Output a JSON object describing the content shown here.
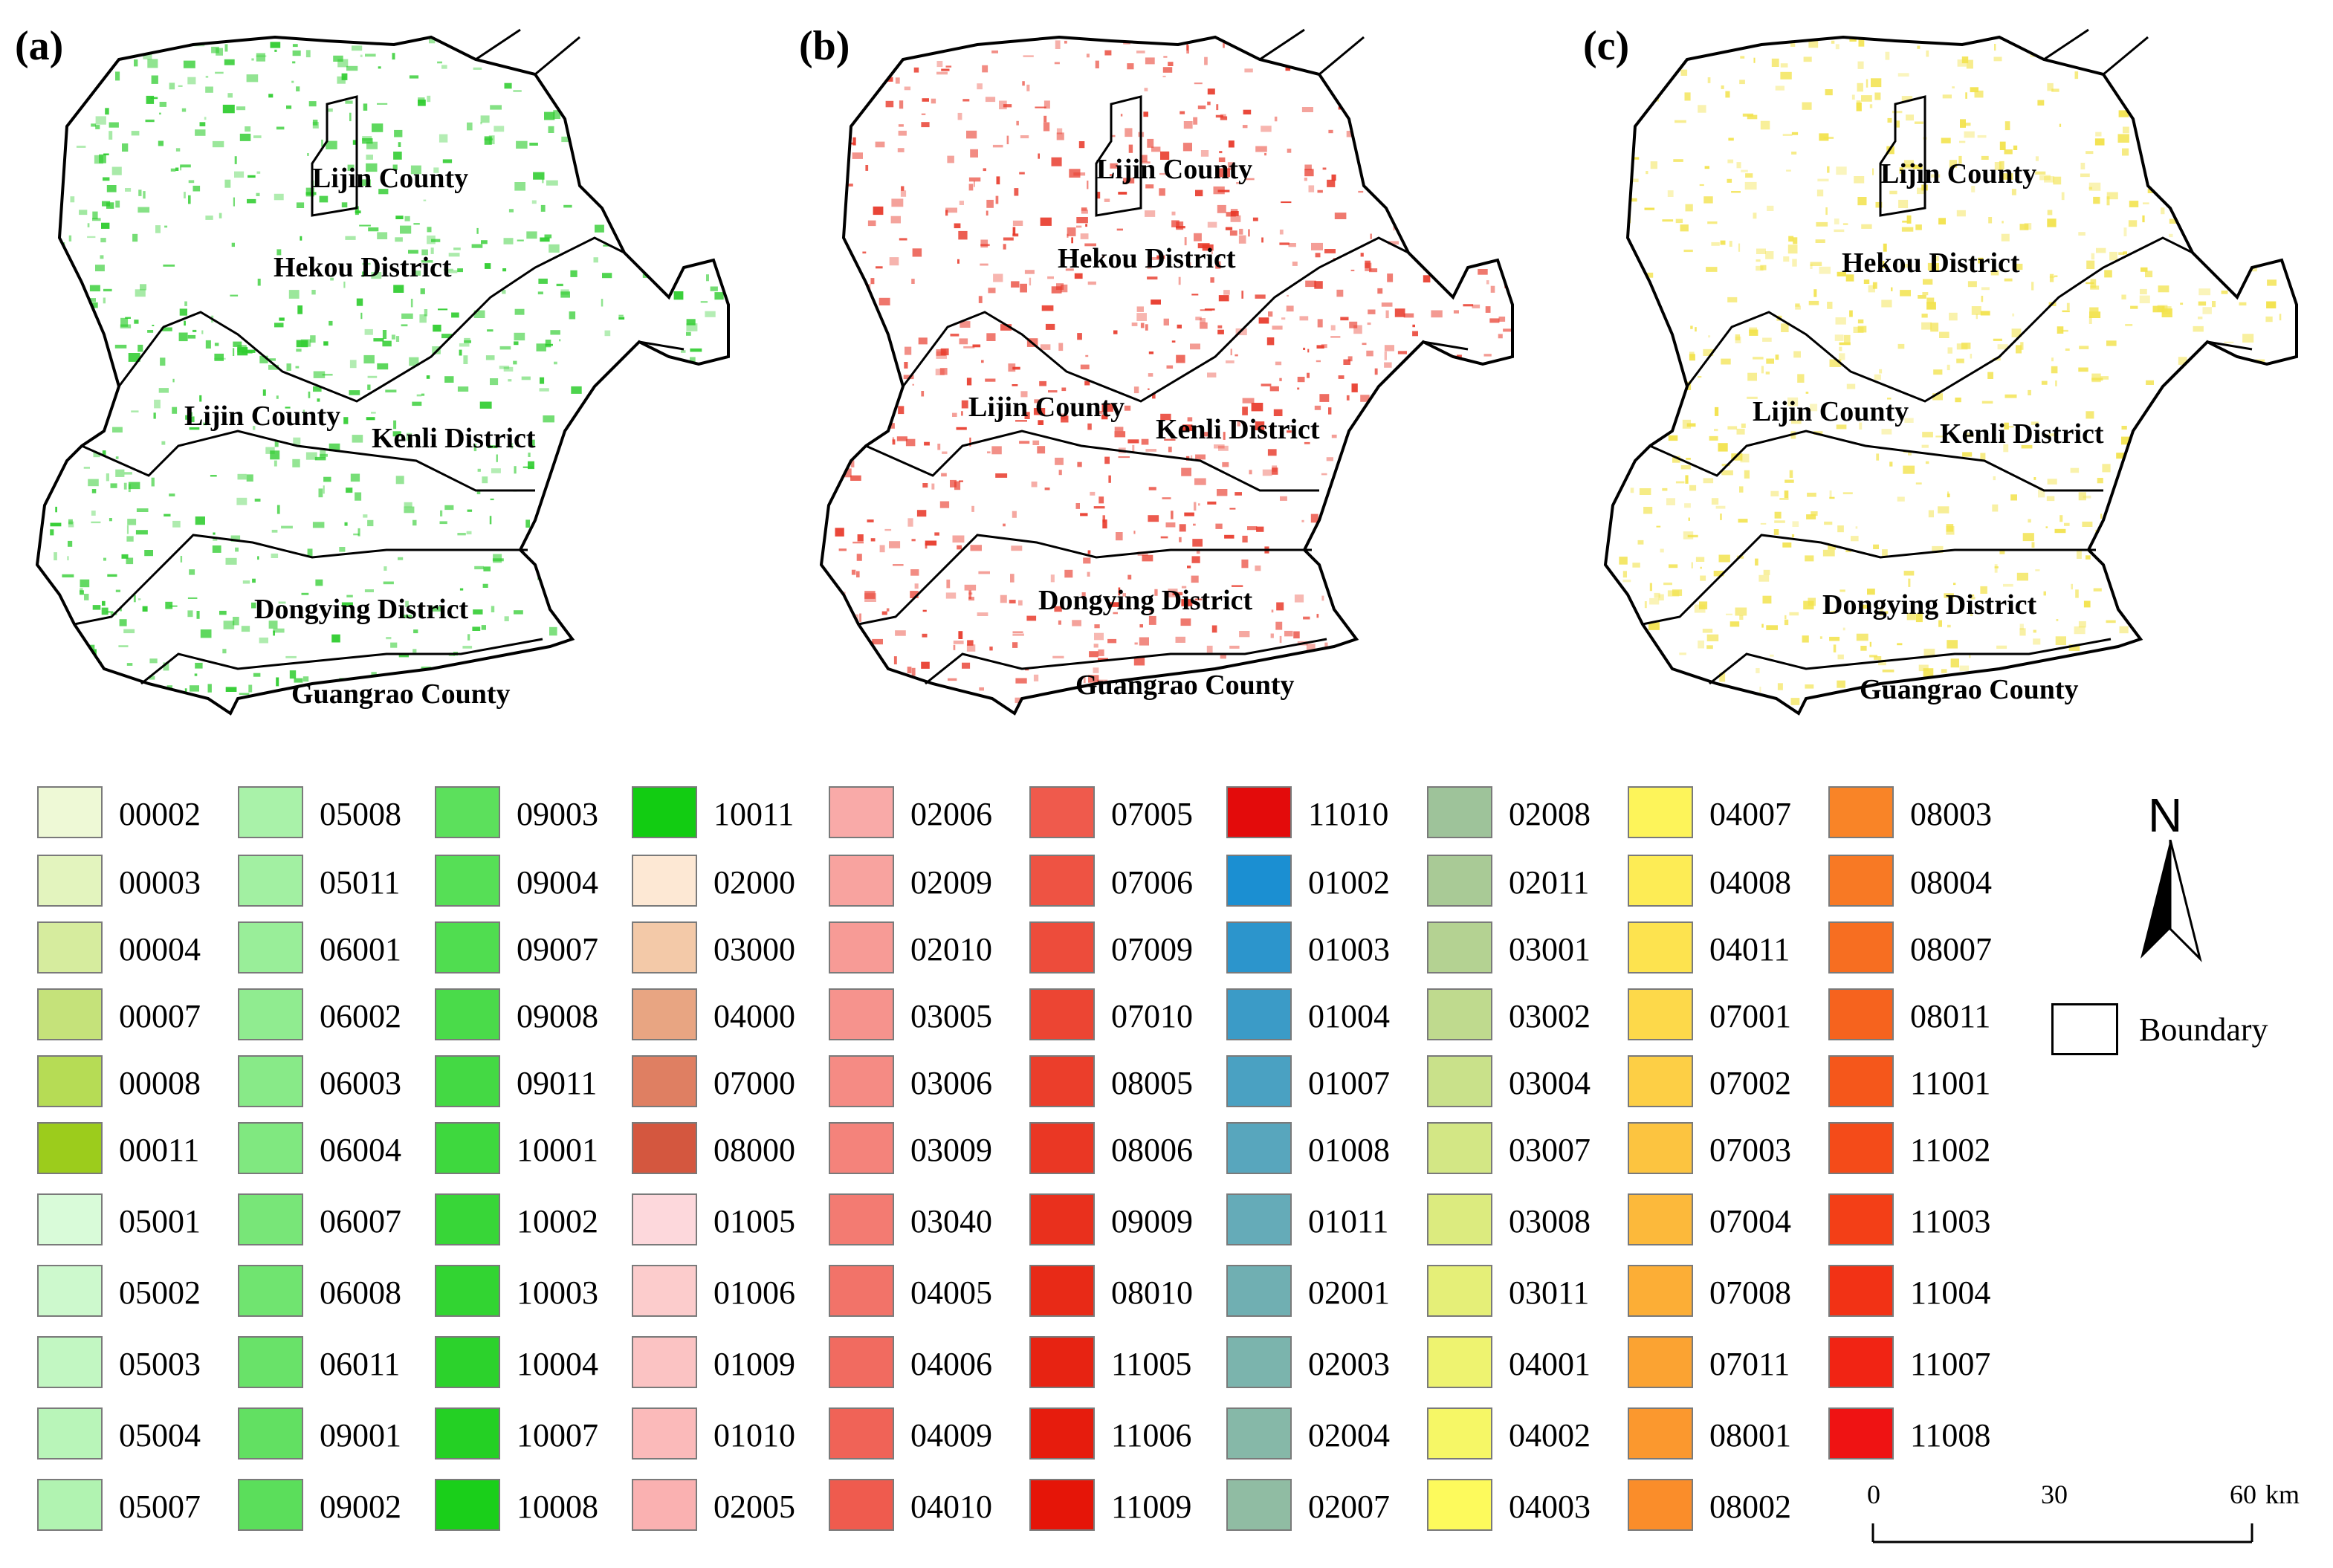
{
  "panels": [
    {
      "label": "(a)",
      "color": "#2ecc2e",
      "regions": {
        "lijin_north": "Lijin County",
        "hekou": "Hekou District",
        "lijin_south": "Lijin County",
        "kenli": "Kenli District",
        "dongying": "Dongying District",
        "guangrao": "Guangrao County"
      }
    },
    {
      "label": "(b)",
      "color": "#e8392a",
      "regions": {
        "lijin_north": "Lijin County",
        "hekou": "Hekou District",
        "lijin_south": "Lijin County",
        "kenli": "Kenli District",
        "dongying": "Dongying District",
        "guangrao": "Guangrao County"
      }
    },
    {
      "label": "(c)",
      "color": "#f2e24a",
      "regions": {
        "lijin_north": "Lijin County",
        "hekou": "Hekou District",
        "lijin_south": "Lijin County",
        "kenli": "Kenli District",
        "dongying": "Dongying District",
        "guangrao": "Guangrao County"
      }
    }
  ],
  "legend": {
    "columns": [
      [
        {
          "code": "00002",
          "color": "#eef9d6"
        },
        {
          "code": "00003",
          "color": "#e3f4be"
        },
        {
          "code": "00004",
          "color": "#d6ec9e"
        },
        {
          "code": "00007",
          "color": "#c5e27a"
        },
        {
          "code": "00008",
          "color": "#b6dc55"
        },
        {
          "code": "00011",
          "color": "#9ccc1c"
        },
        {
          "code": "05001",
          "color": "#d9fbd9"
        },
        {
          "code": "05002",
          "color": "#cdf9cd"
        },
        {
          "code": "05003",
          "color": "#c2f7c2"
        },
        {
          "code": "05004",
          "color": "#b9f5b9"
        },
        {
          "code": "05007",
          "color": "#b1f3b1"
        }
      ],
      [
        {
          "code": "05008",
          "color": "#a9f2a9"
        },
        {
          "code": "05011",
          "color": "#a2f0a2"
        },
        {
          "code": "06001",
          "color": "#99ee99"
        },
        {
          "code": "06002",
          "color": "#90ec90"
        },
        {
          "code": "06003",
          "color": "#88ea88"
        },
        {
          "code": "06004",
          "color": "#80e880"
        },
        {
          "code": "06007",
          "color": "#78e678"
        },
        {
          "code": "06008",
          "color": "#70e470"
        },
        {
          "code": "06011",
          "color": "#69e269"
        },
        {
          "code": "09001",
          "color": "#62e062"
        },
        {
          "code": "09002",
          "color": "#5bde5b"
        }
      ],
      [
        {
          "code": "09003",
          "color": "#5ce05c"
        },
        {
          "code": "09004",
          "color": "#56df56"
        },
        {
          "code": "09007",
          "color": "#50dd50"
        },
        {
          "code": "09008",
          "color": "#4adb4a"
        },
        {
          "code": "09011",
          "color": "#44d944"
        },
        {
          "code": "10001",
          "color": "#3ed83e"
        },
        {
          "code": "10002",
          "color": "#38d638"
        },
        {
          "code": "10003",
          "color": "#32d432"
        },
        {
          "code": "10004",
          "color": "#2cd22c"
        },
        {
          "code": "10007",
          "color": "#24d024"
        },
        {
          "code": "10008",
          "color": "#1acf1a"
        }
      ],
      [
        {
          "code": "10011",
          "color": "#12cc12"
        },
        {
          "code": "02000",
          "color": "#fde8d4"
        },
        {
          "code": "03000",
          "color": "#f3c9a8"
        },
        {
          "code": "04000",
          "color": "#e8a582"
        },
        {
          "code": "07000",
          "color": "#df7f62"
        },
        {
          "code": "08000",
          "color": "#d4573f"
        },
        {
          "code": "01005",
          "color": "#fdd8dc"
        },
        {
          "code": "01006",
          "color": "#fccccc"
        },
        {
          "code": "01009",
          "color": "#fbc3c3"
        },
        {
          "code": "01010",
          "color": "#fbbaba"
        },
        {
          "code": "02005",
          "color": "#fab1b1"
        }
      ],
      [
        {
          "code": "02006",
          "color": "#f9aaa8"
        },
        {
          "code": "02009",
          "color": "#f8a39f"
        },
        {
          "code": "02010",
          "color": "#f79b96"
        },
        {
          "code": "03005",
          "color": "#f6938d"
        },
        {
          "code": "03006",
          "color": "#f58b84"
        },
        {
          "code": "03009",
          "color": "#f4837b"
        },
        {
          "code": "03040",
          "color": "#f37b72"
        },
        {
          "code": "04005",
          "color": "#f27369"
        },
        {
          "code": "04006",
          "color": "#f16b60"
        },
        {
          "code": "04009",
          "color": "#f06357"
        },
        {
          "code": "04010",
          "color": "#ef5b4e"
        }
      ],
      [
        {
          "code": "07005",
          "color": "#ef5a4c"
        },
        {
          "code": "07006",
          "color": "#ee5343"
        },
        {
          "code": "07009",
          "color": "#ed4c3b"
        },
        {
          "code": "07010",
          "color": "#ec4533"
        },
        {
          "code": "08005",
          "color": "#eb3e2b"
        },
        {
          "code": "08006",
          "color": "#ea3724"
        },
        {
          "code": "09009",
          "color": "#e9301d"
        },
        {
          "code": "08010",
          "color": "#e82a17"
        },
        {
          "code": "11005",
          "color": "#e72312"
        },
        {
          "code": "11006",
          "color": "#e61c0d"
        },
        {
          "code": "11009",
          "color": "#e51508"
        }
      ],
      [
        {
          "code": "11010",
          "color": "#e30b0b"
        },
        {
          "code": "01002",
          "color": "#1b8fd2"
        },
        {
          "code": "01003",
          "color": "#2c95cc"
        },
        {
          "code": "01004",
          "color": "#3b9bc7"
        },
        {
          "code": "01007",
          "color": "#4aa1c2"
        },
        {
          "code": "01008",
          "color": "#58a6bd"
        },
        {
          "code": "01011",
          "color": "#65abb8"
        },
        {
          "code": "02001",
          "color": "#70afb2"
        },
        {
          "code": "02003",
          "color": "#7bb4ad"
        },
        {
          "code": "02004",
          "color": "#86b8a8"
        },
        {
          "code": "02007",
          "color": "#90bca3"
        }
      ],
      [
        {
          "code": "02008",
          "color": "#9ec39a"
        },
        {
          "code": "02011",
          "color": "#a9ca96"
        },
        {
          "code": "03001",
          "color": "#b4d292"
        },
        {
          "code": "03002",
          "color": "#bfda8e"
        },
        {
          "code": "03004",
          "color": "#c9e18a"
        },
        {
          "code": "03007",
          "color": "#d3e785"
        },
        {
          "code": "03008",
          "color": "#dceb7f"
        },
        {
          "code": "03011",
          "color": "#e5ef78"
        },
        {
          "code": "04001",
          "color": "#eef370"
        },
        {
          "code": "04002",
          "color": "#f6f766"
        },
        {
          "code": "04003",
          "color": "#fdfa5c"
        }
      ],
      [
        {
          "code": "04007",
          "color": "#fdf45a"
        },
        {
          "code": "04008",
          "color": "#fdec55"
        },
        {
          "code": "04011",
          "color": "#fde34f"
        },
        {
          "code": "07001",
          "color": "#fdd94a"
        },
        {
          "code": "07002",
          "color": "#fdcf45"
        },
        {
          "code": "07003",
          "color": "#fcc440"
        },
        {
          "code": "07004",
          "color": "#fcb93b"
        },
        {
          "code": "07008",
          "color": "#fcae36"
        },
        {
          "code": "07011",
          "color": "#fba332"
        },
        {
          "code": "08001",
          "color": "#fb982e"
        },
        {
          "code": "08002",
          "color": "#fa8d2a"
        }
      ],
      [
        {
          "code": "08003",
          "color": "#f98427"
        },
        {
          "code": "08004",
          "color": "#f87924"
        },
        {
          "code": "08007",
          "color": "#f76e21"
        },
        {
          "code": "08011",
          "color": "#f6631e"
        },
        {
          "code": "11001",
          "color": "#f5571b"
        },
        {
          "code": "11002",
          "color": "#f44b19"
        },
        {
          "code": "11003",
          "color": "#f33f17"
        },
        {
          "code": "11004",
          "color": "#f23215"
        },
        {
          "code": "11007",
          "color": "#f12414"
        },
        {
          "code": "11008",
          "color": "#ef1313"
        }
      ]
    ],
    "north_label": "N",
    "boundary_label": "Boundary"
  },
  "scalebar": {
    "ticks": [
      "0",
      "30",
      "60"
    ],
    "unit": "km"
  }
}
